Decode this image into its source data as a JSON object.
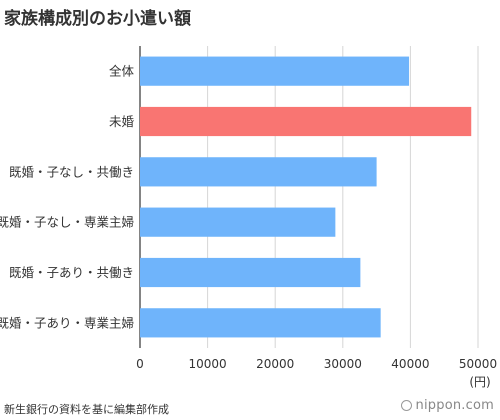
{
  "title": "家族構成別のお小遣い額",
  "source": "新生銀行の資料を基に編集部作成",
  "brand": "nippon.com",
  "chart_data": {
    "type": "bar",
    "orientation": "horizontal",
    "categories": [
      "全体",
      "未婚",
      "既婚・子なし・共働き",
      "既婚・子なし・専業主婦",
      "既婚・子あり・共働き",
      "既婚・子あり・専業主婦"
    ],
    "values": [
      39800,
      49000,
      35000,
      28900,
      32600,
      35600
    ],
    "bar_colors": [
      "#6fb4fb",
      "#f97572",
      "#6fb4fb",
      "#6fb4fb",
      "#6fb4fb",
      "#6fb4fb"
    ],
    "xlim": [
      0,
      50000
    ],
    "x_ticks": [
      0,
      10000,
      20000,
      30000,
      40000,
      50000
    ],
    "unit_label": "(円)",
    "grid": true,
    "legend": "none"
  }
}
